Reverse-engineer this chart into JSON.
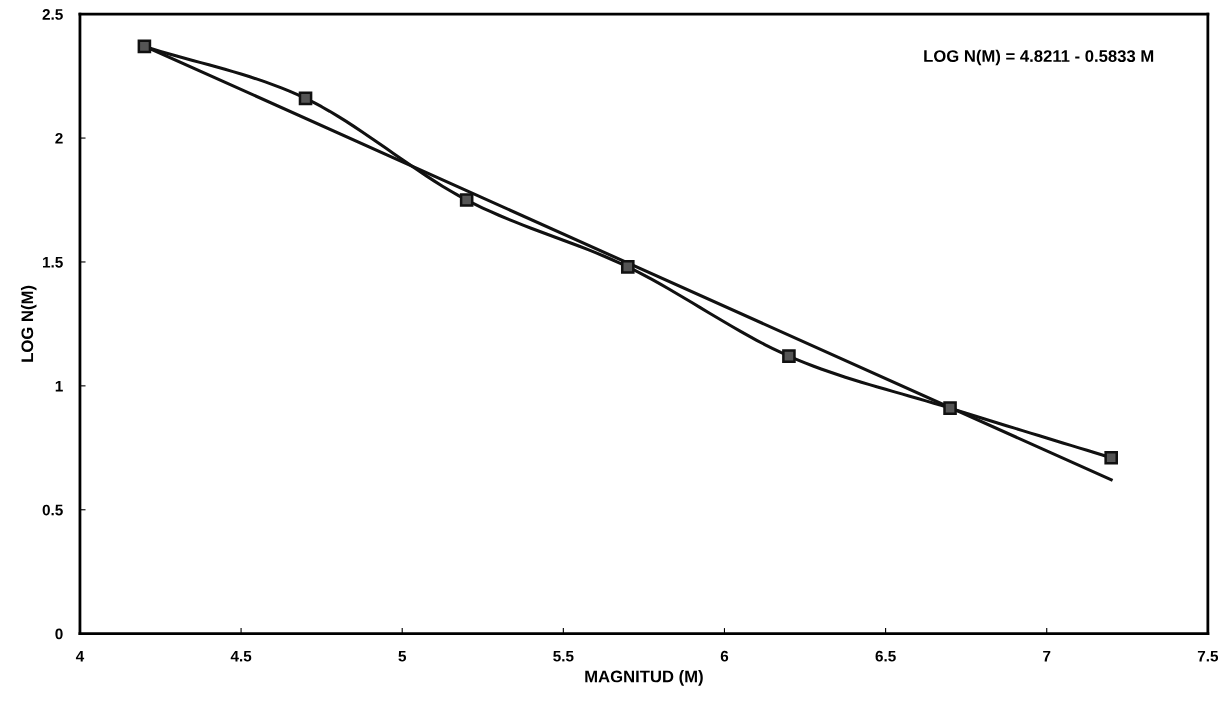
{
  "chart_data": {
    "type": "line",
    "xlabel": "MAGNITUD (M)",
    "ylabel": "LOG N(M)",
    "annotations": [
      "LOG N(M) = 4.8211 - 0.5833 M"
    ],
    "xlim": [
      4,
      7.5
    ],
    "xticks": [
      4,
      4.5,
      5,
      5.5,
      6,
      6.5,
      7,
      7.5
    ],
    "ylim": [
      0,
      2.5
    ],
    "yticks": [
      0,
      0.5,
      1,
      1.5,
      2,
      2.5
    ],
    "grid": false,
    "legend": false,
    "series": [
      {
        "color": "#111111",
        "marker": "square",
        "x": [
          4.2,
          4.7,
          5.2,
          5.7,
          6.2,
          6.7,
          7.2
        ],
        "values": [
          2.37,
          2.16,
          1.75,
          1.48,
          1.12,
          0.91,
          0.71
        ]
      },
      {
        "color": "#111111",
        "marker": "none",
        "x": [
          4.2,
          7.2
        ],
        "values": [
          2.371,
          0.621
        ]
      }
    ]
  }
}
